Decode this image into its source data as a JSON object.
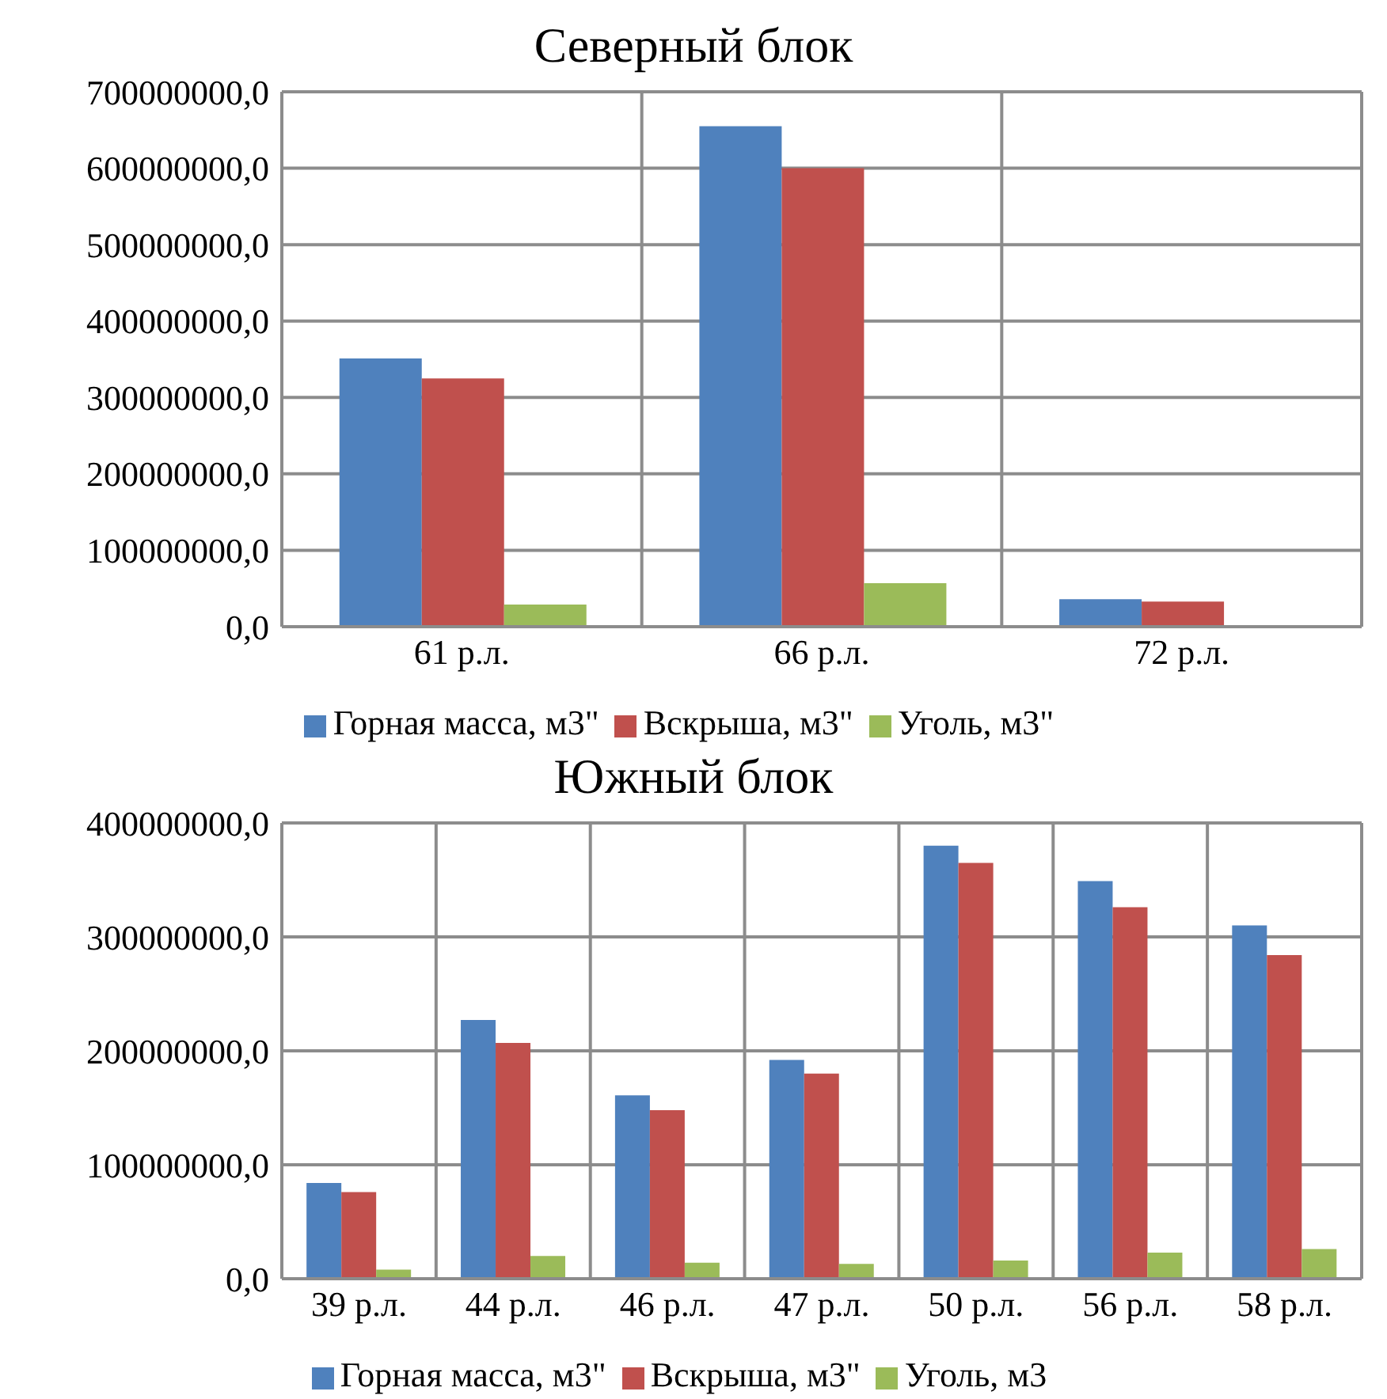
{
  "chart_data": [
    {
      "type": "bar",
      "title": "Северный блок",
      "categories": [
        "61 р.л.",
        "66 р.л.",
        "72 р.л."
      ],
      "series": [
        {
          "name": "Горная масса, м3\"",
          "color": "#4f81bd",
          "values": [
            351000000,
            655000000,
            36000000
          ]
        },
        {
          "name": "Вскрыша, м3\"",
          "color": "#c0504d",
          "values": [
            325000000,
            600000000,
            33000000
          ]
        },
        {
          "name": "Уголь, м3\"",
          "color": "#9bbb59",
          "values": [
            29000000,
            57000000,
            1000000
          ]
        }
      ],
      "ylim": [
        0,
        700000000
      ],
      "yticks": [
        {
          "value": 0,
          "label": "0,0"
        },
        {
          "value": 100000000,
          "label": "100000000,0"
        },
        {
          "value": 200000000,
          "label": "200000000,0"
        },
        {
          "value": 300000000,
          "label": "300000000,0"
        },
        {
          "value": 400000000,
          "label": "400000000,0"
        },
        {
          "value": 500000000,
          "label": "500000000,0"
        },
        {
          "value": 600000000,
          "label": "600000000,0"
        },
        {
          "value": 700000000,
          "label": "700000000,0"
        }
      ],
      "grid": true,
      "legend": "bottom"
    },
    {
      "type": "bar",
      "title": "Южный блок",
      "categories": [
        "39 р.л.",
        "44 р.л.",
        "46 р.л.",
        "47 р.л.",
        "50 р.л.",
        "56 р.л.",
        "58 р.л."
      ],
      "series": [
        {
          "name": "Горная масса, м3\"",
          "color": "#4f81bd",
          "values": [
            84000000,
            227000000,
            161000000,
            192000000,
            380000000,
            349000000,
            310000000
          ]
        },
        {
          "name": "Вскрыша, м3\"",
          "color": "#c0504d",
          "values": [
            76000000,
            207000000,
            148000000,
            180000000,
            365000000,
            326000000,
            284000000
          ]
        },
        {
          "name": "Уголь, м3",
          "color": "#9bbb59",
          "values": [
            8000000,
            20000000,
            14000000,
            13000000,
            16000000,
            23000000,
            26000000
          ]
        }
      ],
      "ylim": [
        0,
        400000000
      ],
      "yticks": [
        {
          "value": 0,
          "label": "0,0"
        },
        {
          "value": 100000000,
          "label": "100000000,0"
        },
        {
          "value": 200000000,
          "label": "200000000,0"
        },
        {
          "value": 300000000,
          "label": "300000000,0"
        },
        {
          "value": 400000000,
          "label": "400000000,0"
        }
      ],
      "grid": true,
      "legend": "bottom"
    }
  ]
}
